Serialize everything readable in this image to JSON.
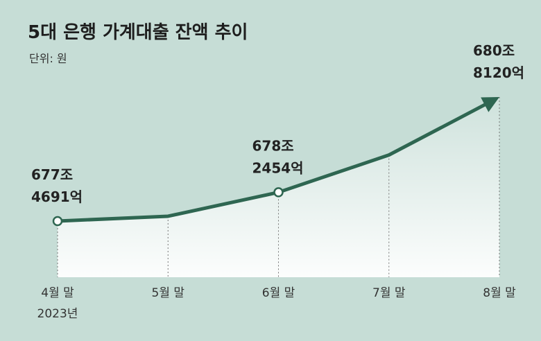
{
  "chart_data": {
    "type": "line",
    "title": "5대 은행 가계대출 잔액 추이",
    "subtitle": "단위: 원",
    "categories": [
      "4월 말",
      "5월 말",
      "6월 말",
      "7월 말",
      "8월 말"
    ],
    "year_label": "2023년",
    "values": [
      6774691,
      6776000,
      6782454,
      6792500,
      6808120
    ],
    "value_labels": [
      "677조\n4691억",
      null,
      "678조\n2454억",
      null,
      "680조\n8120억"
    ],
    "color": "#2e6651"
  }
}
